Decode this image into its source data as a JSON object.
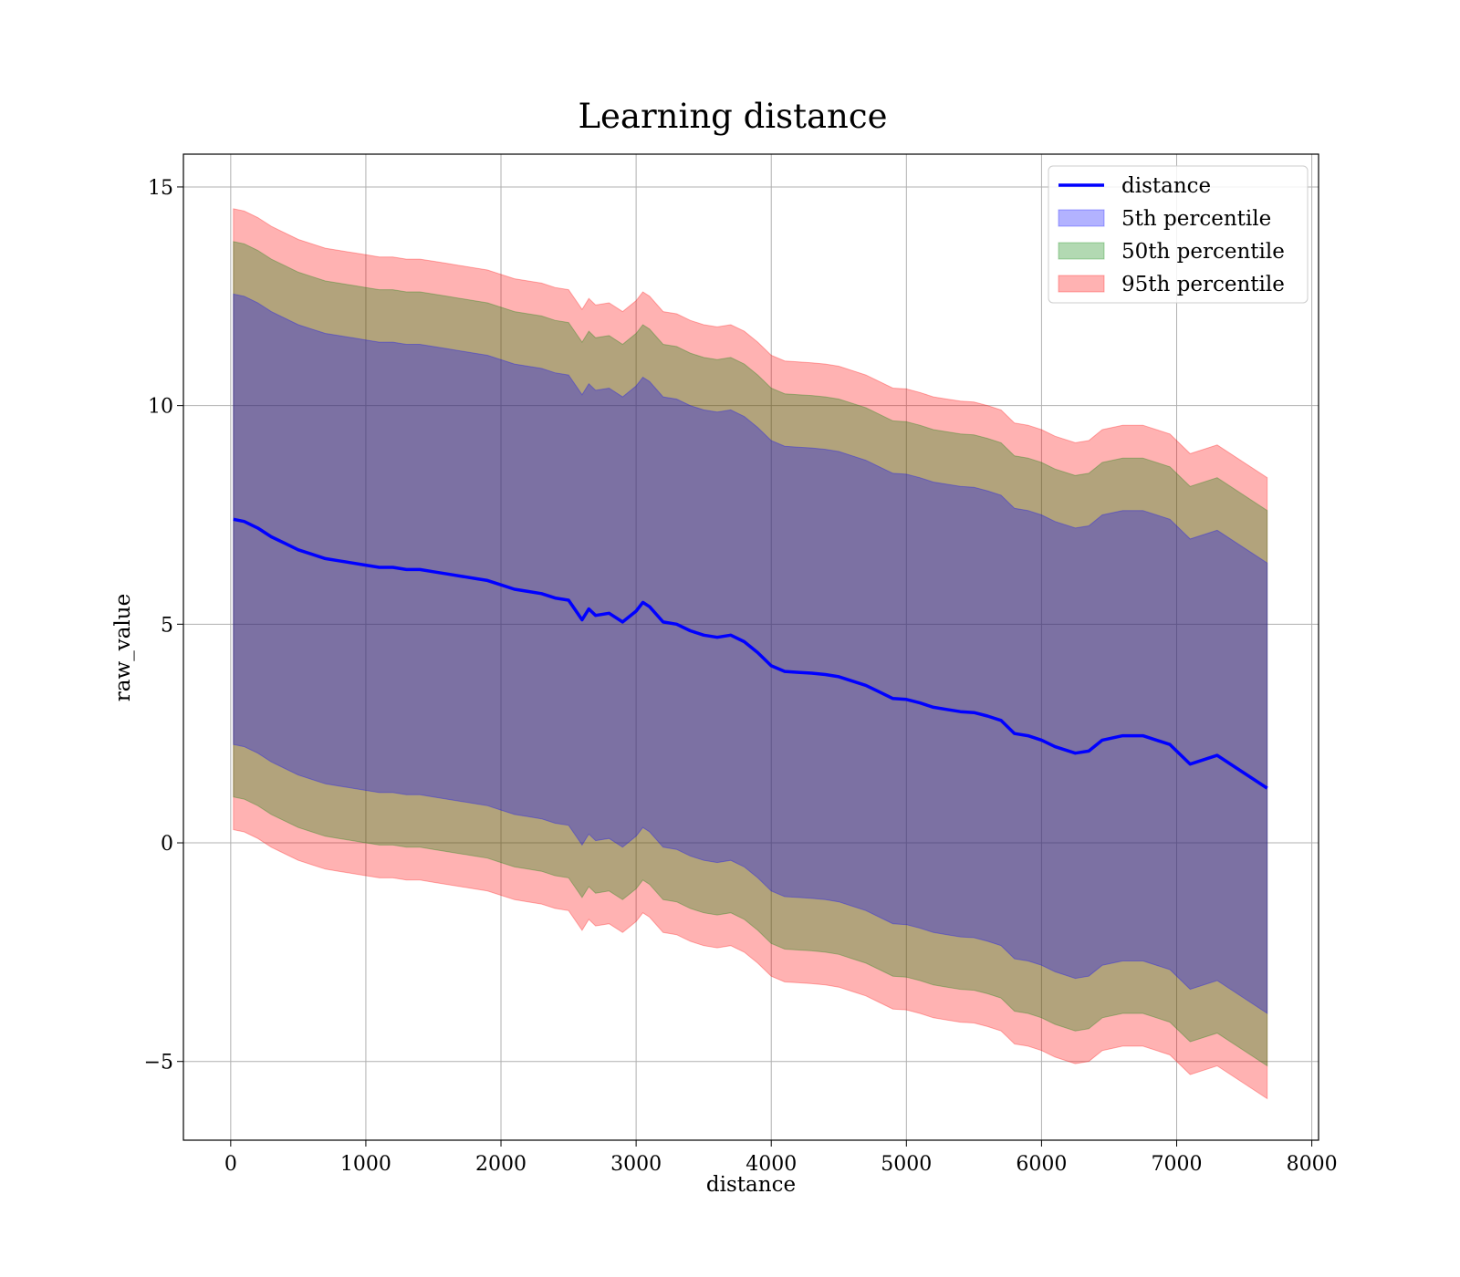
{
  "chart_data": {
    "type": "line",
    "title": "Learning distance",
    "xlabel": "distance",
    "ylabel": "raw_value",
    "xlim": [
      -350,
      8050
    ],
    "ylim": [
      -6.8,
      15.75
    ],
    "xticks": [
      0,
      1000,
      2000,
      3000,
      4000,
      5000,
      6000,
      7000,
      8000
    ],
    "xtick_labels": [
      "0",
      "1000",
      "2000",
      "3000",
      "4000",
      "5000",
      "6000",
      "7000",
      "8000"
    ],
    "yticks": [
      -5,
      0,
      5,
      10,
      15
    ],
    "ytick_labels": [
      "−5",
      "0",
      "5",
      "10",
      "15"
    ],
    "grid": true,
    "legend_position": "top-right",
    "line": {
      "name": "distance",
      "color": "#0000ff",
      "x": [
        20,
        100,
        200,
        300,
        400,
        500,
        600,
        700,
        800,
        900,
        1000,
        1100,
        1200,
        1300,
        1400,
        1500,
        1600,
        1700,
        1800,
        1900,
        2000,
        2100,
        2200,
        2300,
        2400,
        2500,
        2600,
        2650,
        2700,
        2800,
        2900,
        3000,
        3050,
        3100,
        3200,
        3300,
        3400,
        3500,
        3600,
        3700,
        3800,
        3900,
        4000,
        4100,
        4200,
        4300,
        4400,
        4500,
        4600,
        4700,
        4800,
        4900,
        5000,
        5100,
        5200,
        5300,
        5400,
        5500,
        5600,
        5700,
        5750,
        5800,
        5900,
        6000,
        6100,
        6250,
        6350,
        6450,
        6600,
        6750,
        6950,
        7100,
        7300,
        7670
      ],
      "y": [
        7.4,
        7.35,
        7.2,
        7.0,
        6.85,
        6.7,
        6.6,
        6.5,
        6.45,
        6.4,
        6.35,
        6.3,
        6.3,
        6.25,
        6.25,
        6.2,
        6.15,
        6.1,
        6.05,
        6.0,
        5.9,
        5.8,
        5.75,
        5.7,
        5.6,
        5.55,
        5.1,
        5.35,
        5.2,
        5.25,
        5.05,
        5.3,
        5.5,
        5.4,
        5.05,
        5.0,
        4.85,
        4.75,
        4.7,
        4.75,
        4.6,
        4.35,
        4.05,
        3.92,
        3.9,
        3.88,
        3.85,
        3.8,
        3.7,
        3.6,
        3.45,
        3.3,
        3.28,
        3.2,
        3.1,
        3.05,
        3.0,
        2.98,
        2.9,
        2.8,
        2.65,
        2.5,
        2.45,
        2.35,
        2.2,
        2.05,
        2.1,
        2.35,
        2.45,
        2.45,
        2.25,
        1.8,
        2.0,
        1.25
      ]
    },
    "bands": [
      {
        "name": "95th percentile",
        "color": "#ff0000",
        "half_width": 7.1
      },
      {
        "name": "50th percentile",
        "color": "#008000",
        "half_width": 6.35
      },
      {
        "name": "5th percentile",
        "color": "#0000ff",
        "half_width": 5.15
      }
    ],
    "legend": [
      {
        "label": "distance",
        "kind": "line",
        "color": "#0000ff"
      },
      {
        "label": "5th percentile",
        "kind": "patch",
        "color": "#0000ff"
      },
      {
        "label": "50th percentile",
        "kind": "patch",
        "color": "#008000"
      },
      {
        "label": "95th percentile",
        "kind": "patch",
        "color": "#ff0000"
      }
    ]
  }
}
